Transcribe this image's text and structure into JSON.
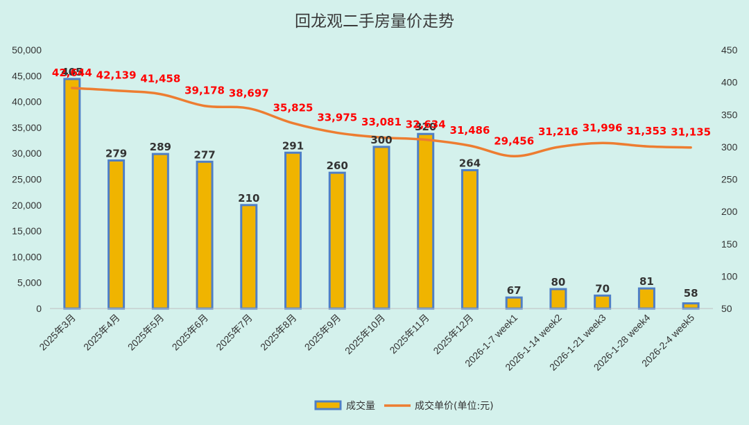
{
  "chart_data": {
    "type": "bar+line",
    "title": "回龙观二手房量价走势",
    "categories": [
      "2025年3月",
      "2025年4月",
      "2025年5月",
      "2025年6月",
      "2025年7月",
      "2025年8月",
      "2025年9月",
      "2025年10月",
      "2025年11月",
      "2025年12月",
      "2026-1-7 week1",
      "2026-1-14 week2",
      "2026-1-21 week3",
      "2026-1-28 week4",
      "2026-2-4 week5"
    ],
    "series": [
      {
        "name": "成交量",
        "type": "bar",
        "axis": "right",
        "values": [
          405,
          279,
          289,
          277,
          210,
          291,
          260,
          300,
          320,
          264,
          67,
          80,
          70,
          81,
          58
        ],
        "labels": [
          "405",
          "279",
          "289",
          "277",
          "210",
          "291",
          "260",
          "300",
          "320",
          "264",
          "67",
          "80",
          "70",
          "81",
          "58"
        ],
        "color": "#f0b400",
        "border_color": "#4f7fc6"
      },
      {
        "name": "成交单价(单位:元)",
        "type": "line",
        "axis": "left",
        "values": [
          42644,
          42139,
          41458,
          39178,
          38697,
          35825,
          33975,
          33081,
          32634,
          31486,
          29456,
          31216,
          31996,
          31353,
          31135
        ],
        "labels": [
          "42,644",
          "42,139",
          "41,458",
          "39,178",
          "38,697",
          "35,825",
          "33,975",
          "33,081",
          "32,634",
          "31,486",
          "29,456",
          "31,216",
          "31,996",
          "31,353",
          "31,135"
        ],
        "color": "#ed7d31",
        "label_color": "#ff0000"
      }
    ],
    "y_left": {
      "min": 0,
      "max": 50000,
      "step": 5000,
      "ticks": [
        "0",
        "5,000",
        "10,000",
        "15,000",
        "20,000",
        "25,000",
        "30,000",
        "35,000",
        "40,000",
        "45,000",
        "50,000"
      ]
    },
    "y_right": {
      "min": 50,
      "max": 450,
      "step": 50,
      "ticks": [
        "50",
        "100",
        "150",
        "200",
        "250",
        "300",
        "350",
        "400",
        "450"
      ]
    },
    "grid": false,
    "legend_position": "bottom"
  }
}
